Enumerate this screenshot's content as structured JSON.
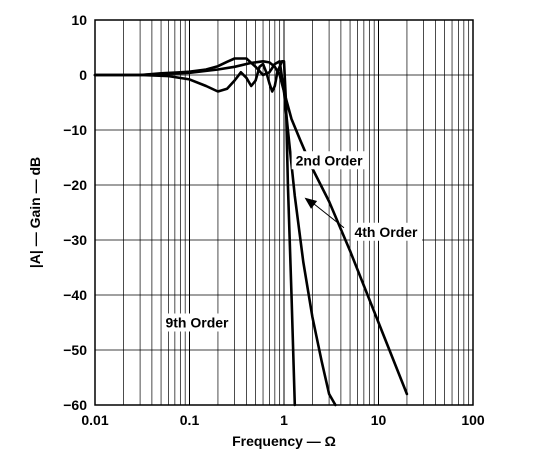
{
  "chart_data": {
    "type": "line",
    "title": "",
    "xlabel": "Frequency — Ω",
    "ylabel": "|A| — Gain — dB",
    "xscale": "log",
    "xlim": [
      0.01,
      100
    ],
    "ylim": [
      -60,
      10
    ],
    "grid": true,
    "x_tick_labels": [
      "0.01",
      "0.1",
      "1",
      "10",
      "100"
    ],
    "y_tick_labels": [
      "10",
      "0",
      "−10",
      "−20",
      "−30",
      "−40",
      "−50",
      "−60"
    ],
    "x_ticks": [
      0.01,
      0.1,
      1,
      10,
      100
    ],
    "y_ticks": [
      10,
      0,
      -10,
      -20,
      -30,
      -40,
      -50,
      -60
    ],
    "series": [
      {
        "name": "2nd Order",
        "x": [
          0.01,
          0.03,
          0.05,
          0.1,
          0.2,
          0.3,
          0.45,
          0.6,
          0.7,
          0.8,
          0.9,
          1.0,
          1.2,
          1.5,
          2,
          3,
          5,
          10,
          20
        ],
        "y": [
          0,
          0,
          0.2,
          0.4,
          1.0,
          1.5,
          2.2,
          2.5,
          2.3,
          1.5,
          0,
          -3,
          -8,
          -12,
          -17,
          -23,
          -32,
          -45,
          -58
        ]
      },
      {
        "name": "4th Order",
        "x": [
          0.01,
          0.03,
          0.05,
          0.08,
          0.1,
          0.15,
          0.2,
          0.25,
          0.3,
          0.4,
          0.5,
          0.6,
          0.7,
          0.8,
          0.9,
          1.0,
          1.1,
          1.3,
          1.6,
          2,
          2.5,
          3,
          3.5
        ],
        "y": [
          0,
          0,
          0.3,
          0.5,
          0.6,
          1.0,
          1.6,
          2.4,
          3.0,
          3.0,
          1.5,
          0,
          0.5,
          2.0,
          2.5,
          -3,
          -10,
          -22,
          -34,
          -44,
          -52,
          -58,
          -60
        ]
      },
      {
        "name": "9th Order",
        "x": [
          0.01,
          0.03,
          0.06,
          0.1,
          0.15,
          0.2,
          0.25,
          0.3,
          0.35,
          0.4,
          0.45,
          0.5,
          0.55,
          0.6,
          0.65,
          0.7,
          0.75,
          0.8,
          0.85,
          0.9,
          0.95,
          1.0,
          1.05,
          1.1,
          1.2,
          1.3
        ],
        "y": [
          0,
          0,
          -0.2,
          -0.8,
          -2.0,
          -3.0,
          -2.5,
          -1.0,
          0.5,
          -0.5,
          -2.0,
          -1.0,
          1.5,
          2.0,
          0.5,
          -1.5,
          -3.0,
          -2.0,
          0.5,
          1.5,
          2.5,
          2.5,
          -5,
          -20,
          -40,
          -60
        ]
      }
    ],
    "annotations": [
      {
        "text": "2nd Order",
        "x": 3,
        "y": -15.5
      },
      {
        "text": "4th Order",
        "x": 12,
        "y": -28.5
      },
      {
        "text": "9th Order",
        "x": 0.12,
        "y": -45
      }
    ]
  }
}
